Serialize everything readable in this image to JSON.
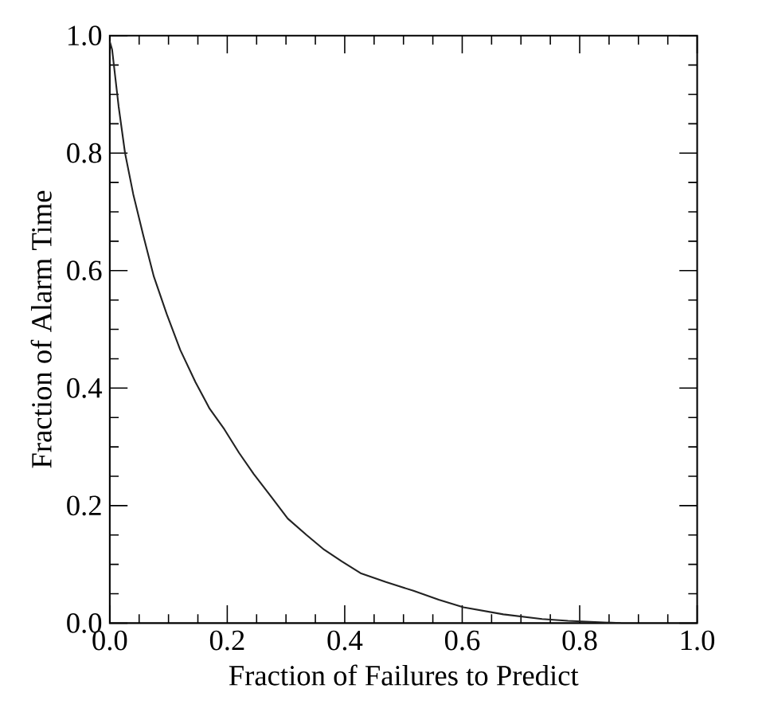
{
  "chart_data": {
    "type": "line",
    "xlabel": "Fraction of Failures to Predict",
    "ylabel": "Fraction of Alarm Time",
    "xlim": [
      0,
      1
    ],
    "ylim": [
      0,
      1
    ],
    "xticks": [
      {
        "value": 0,
        "label": "0.0"
      },
      0.2,
      0.4,
      0.6,
      0.8,
      {
        "value": 1,
        "label": "1.0"
      }
    ],
    "yticks": [
      {
        "value": 0,
        "label": "0.0"
      },
      0.2,
      0.4,
      0.6,
      0.8,
      {
        "value": 1,
        "label": "1.0"
      }
    ],
    "grid": false,
    "legend": false,
    "marker": "none",
    "line_style": "solid",
    "series": [
      {
        "color": "#222222",
        "x": [
          0.0,
          0.004,
          0.015,
          0.026,
          0.04,
          0.057,
          0.075,
          0.097,
          0.12,
          0.146,
          0.17,
          0.195,
          0.22,
          0.245,
          0.275,
          0.303,
          0.335,
          0.365,
          0.395,
          0.427,
          0.47,
          0.517,
          0.56,
          0.602,
          0.67,
          0.736,
          0.78,
          0.826,
          0.87
        ],
        "values": [
          0.99,
          0.976,
          0.88,
          0.8,
          0.73,
          0.66,
          0.59,
          0.526,
          0.465,
          0.41,
          0.365,
          0.33,
          0.29,
          0.254,
          0.215,
          0.178,
          0.15,
          0.125,
          0.105,
          0.085,
          0.07,
          0.055,
          0.04,
          0.027,
          0.015,
          0.007,
          0.004,
          0.002,
          0.0
        ]
      }
    ]
  }
}
